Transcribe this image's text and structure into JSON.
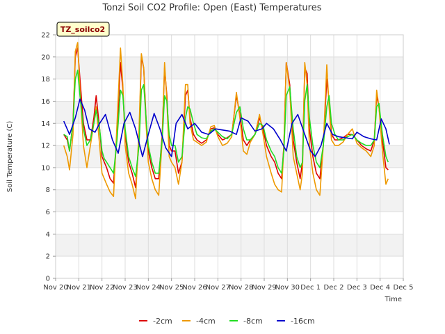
{
  "chart_data": {
    "type": "line",
    "title": "Tonzi Soil CO2 Profile: Open (East) Temperatures",
    "xlabel": "Time",
    "ylabel": "Soil Temperature (C)",
    "ylim": [
      0,
      22
    ],
    "xlim": [
      0,
      15
    ],
    "yticks": [
      0,
      2,
      4,
      6,
      8,
      10,
      12,
      14,
      16,
      18,
      20,
      22
    ],
    "xticks": [
      {
        "v": 0,
        "label": "Nov 20"
      },
      {
        "v": 1,
        "label": "Nov 21"
      },
      {
        "v": 2,
        "label": "Nov 22"
      },
      {
        "v": 3,
        "label": "Nov 23"
      },
      {
        "v": 4,
        "label": "Nov 24"
      },
      {
        "v": 5,
        "label": "Nov 25"
      },
      {
        "v": 6,
        "label": "Nov 26"
      },
      {
        "v": 7,
        "label": "Nov 27"
      },
      {
        "v": 8,
        "label": "Nov 28"
      },
      {
        "v": 9,
        "label": "Nov 29"
      },
      {
        "v": 10,
        "label": "Nov 30"
      },
      {
        "v": 11,
        "label": "Dec 1"
      },
      {
        "v": 12,
        "label": "Dec 2"
      },
      {
        "v": 13,
        "label": "Dec 3"
      },
      {
        "v": 14,
        "label": "Dec 4"
      },
      {
        "v": 15,
        "label": "Dec 5"
      }
    ],
    "grid": true,
    "legend_position": "bottom",
    "tag": "TZ_soilco2",
    "series": [
      {
        "name": "-2cm",
        "color": "#dd0000",
        "x": [
          0.35,
          0.5,
          0.6,
          0.75,
          0.85,
          0.95,
          1.05,
          1.2,
          1.35,
          1.5,
          1.65,
          1.75,
          1.9,
          2.0,
          2.1,
          2.2,
          2.35,
          2.5,
          2.65,
          2.8,
          2.9,
          3.0,
          3.15,
          3.3,
          3.45,
          3.6,
          3.7,
          3.8,
          3.9,
          4.0,
          4.15,
          4.3,
          4.45,
          4.6,
          4.7,
          4.8,
          4.9,
          5.0,
          5.15,
          5.3,
          5.45,
          5.6,
          5.7,
          5.8,
          5.95,
          6.1,
          6.3,
          6.5,
          6.7,
          6.85,
          7.0,
          7.2,
          7.4,
          7.6,
          7.8,
          7.95,
          8.1,
          8.25,
          8.4,
          8.6,
          8.8,
          8.95,
          9.1,
          9.3,
          9.45,
          9.6,
          9.75,
          9.85,
          9.95,
          10.1,
          10.25,
          10.4,
          10.55,
          10.65,
          10.75,
          10.85,
          10.95,
          11.1,
          11.25,
          11.4,
          11.55,
          11.7,
          11.8,
          11.9,
          12.05,
          12.2,
          12.4,
          12.6,
          12.8,
          13.0,
          13.2,
          13.4,
          13.6,
          13.75,
          13.85,
          13.95,
          14.1,
          14.25,
          14.35
        ],
        "y": [
          13.0,
          12.5,
          11.5,
          14.0,
          20.0,
          20.8,
          18.0,
          14.0,
          12.5,
          12.5,
          14.5,
          16.5,
          13.5,
          11.0,
          10.5,
          10.0,
          9.0,
          8.6,
          13.0,
          19.5,
          17.0,
          13.0,
          10.5,
          9.5,
          8.2,
          12.5,
          20.0,
          19.0,
          14.5,
          11.5,
          10.0,
          9.0,
          9.0,
          13.0,
          19.0,
          16.5,
          12.0,
          11.5,
          11.5,
          9.5,
          10.5,
          16.5,
          17.0,
          14.5,
          13.0,
          12.5,
          12.2,
          12.5,
          13.5,
          13.6,
          13.0,
          12.5,
          12.7,
          13.0,
          16.5,
          14.8,
          12.5,
          12.0,
          12.5,
          13.0,
          14.5,
          13.5,
          12.0,
          11.0,
          10.5,
          9.5,
          9.0,
          12.0,
          19.5,
          17.5,
          12.5,
          10.5,
          9.0,
          10.5,
          19.0,
          18.5,
          13.5,
          11.0,
          9.5,
          9.0,
          12.0,
          18.0,
          16.0,
          13.0,
          12.5,
          12.5,
          12.7,
          13.0,
          13.0,
          12.5,
          12.0,
          11.7,
          11.5,
          12.5,
          16.5,
          15.5,
          12.5,
          10.0,
          9.8
        ]
      },
      {
        "name": "-4cm",
        "color": "#ee9900",
        "x": [
          0.35,
          0.5,
          0.6,
          0.75,
          0.85,
          0.95,
          1.05,
          1.2,
          1.35,
          1.5,
          1.65,
          1.75,
          1.9,
          2.0,
          2.1,
          2.2,
          2.35,
          2.5,
          2.65,
          2.8,
          2.9,
          3.0,
          3.15,
          3.3,
          3.45,
          3.6,
          3.7,
          3.8,
          3.9,
          4.0,
          4.15,
          4.3,
          4.45,
          4.6,
          4.7,
          4.8,
          4.9,
          5.0,
          5.15,
          5.3,
          5.45,
          5.6,
          5.7,
          5.8,
          5.95,
          6.1,
          6.3,
          6.5,
          6.7,
          6.85,
          7.0,
          7.2,
          7.4,
          7.6,
          7.8,
          7.95,
          8.1,
          8.25,
          8.4,
          8.6,
          8.8,
          8.95,
          9.1,
          9.3,
          9.45,
          9.6,
          9.75,
          9.85,
          9.95,
          10.1,
          10.25,
          10.4,
          10.55,
          10.65,
          10.75,
          10.85,
          10.95,
          11.1,
          11.25,
          11.4,
          11.55,
          11.7,
          11.8,
          11.9,
          12.05,
          12.2,
          12.4,
          12.6,
          12.8,
          13.0,
          13.2,
          13.4,
          13.6,
          13.75,
          13.85,
          13.95,
          14.1,
          14.25,
          14.35
        ],
        "y": [
          12.0,
          11.0,
          9.8,
          13.0,
          20.5,
          21.3,
          17.0,
          12.0,
          10.0,
          12.0,
          14.0,
          15.5,
          12.0,
          9.5,
          9.0,
          8.5,
          7.8,
          7.4,
          14.0,
          20.8,
          17.5,
          12.0,
          9.5,
          8.5,
          7.2,
          13.5,
          20.3,
          19.0,
          14.0,
          10.5,
          9.0,
          8.0,
          7.5,
          12.5,
          19.5,
          16.0,
          11.0,
          10.5,
          10.0,
          8.5,
          10.5,
          17.5,
          17.5,
          14.0,
          12.5,
          12.3,
          12.0,
          12.3,
          13.7,
          13.8,
          12.8,
          12.0,
          12.2,
          12.8,
          16.8,
          14.5,
          11.5,
          11.2,
          12.3,
          13.0,
          14.8,
          13.0,
          11.0,
          9.5,
          8.5,
          8.0,
          7.8,
          12.0,
          19.5,
          17.0,
          11.0,
          9.5,
          8.0,
          9.5,
          19.5,
          17.5,
          12.0,
          9.5,
          8.0,
          7.5,
          12.0,
          19.3,
          15.5,
          12.5,
          12.0,
          12.0,
          12.3,
          13.0,
          13.5,
          12.2,
          11.8,
          11.5,
          11.0,
          12.0,
          17.0,
          15.5,
          11.5,
          8.5,
          9.0
        ]
      },
      {
        "name": "-8cm",
        "color": "#22dd22",
        "x": [
          0.35,
          0.5,
          0.6,
          0.75,
          0.85,
          0.95,
          1.05,
          1.2,
          1.35,
          1.5,
          1.65,
          1.75,
          1.9,
          2.0,
          2.1,
          2.2,
          2.35,
          2.5,
          2.65,
          2.8,
          2.9,
          3.0,
          3.15,
          3.3,
          3.45,
          3.6,
          3.7,
          3.8,
          3.9,
          4.0,
          4.15,
          4.3,
          4.45,
          4.6,
          4.7,
          4.8,
          4.9,
          5.0,
          5.15,
          5.3,
          5.45,
          5.6,
          5.7,
          5.8,
          5.95,
          6.1,
          6.3,
          6.5,
          6.7,
          6.85,
          7.0,
          7.2,
          7.4,
          7.6,
          7.8,
          7.95,
          8.1,
          8.25,
          8.4,
          8.6,
          8.8,
          8.95,
          9.1,
          9.3,
          9.45,
          9.6,
          9.75,
          9.85,
          9.95,
          10.1,
          10.25,
          10.4,
          10.55,
          10.65,
          10.75,
          10.85,
          10.95,
          11.1,
          11.25,
          11.4,
          11.55,
          11.7,
          11.8,
          11.9,
          12.05,
          12.2,
          12.4,
          12.6,
          12.8,
          13.0,
          13.2,
          13.4,
          13.6,
          13.75,
          13.85,
          13.95,
          14.1,
          14.25,
          14.35
        ],
        "y": [
          13.0,
          12.8,
          11.5,
          14.0,
          18.0,
          18.8,
          16.5,
          13.5,
          12.0,
          12.5,
          14.0,
          15.2,
          13.5,
          11.5,
          10.8,
          10.5,
          10.0,
          9.5,
          12.5,
          17.0,
          16.5,
          13.5,
          11.0,
          10.0,
          9.2,
          12.0,
          17.0,
          17.5,
          14.5,
          12.0,
          10.5,
          9.5,
          9.5,
          12.5,
          16.5,
          16.0,
          13.0,
          12.0,
          12.0,
          10.5,
          11.0,
          14.5,
          15.5,
          15.3,
          14.0,
          13.0,
          12.7,
          12.6,
          13.3,
          13.5,
          13.2,
          12.8,
          12.6,
          13.0,
          15.0,
          15.5,
          13.5,
          12.5,
          12.5,
          13.0,
          14.0,
          13.8,
          12.5,
          11.5,
          11.0,
          10.0,
          9.5,
          11.5,
          16.5,
          17.3,
          13.5,
          11.0,
          10.0,
          10.5,
          16.0,
          17.5,
          14.5,
          12.0,
          10.5,
          10.0,
          12.0,
          15.5,
          16.5,
          14.0,
          13.0,
          12.5,
          12.5,
          12.8,
          13.0,
          12.5,
          12.2,
          12.0,
          12.0,
          12.5,
          15.5,
          15.8,
          13.0,
          11.0,
          10.5
        ]
      },
      {
        "name": "-16cm",
        "color": "#0000cc",
        "x": [
          0.35,
          0.6,
          0.85,
          1.05,
          1.25,
          1.45,
          1.7,
          1.9,
          2.15,
          2.45,
          2.7,
          2.95,
          3.2,
          3.45,
          3.75,
          4.0,
          4.25,
          4.5,
          4.75,
          5.0,
          5.2,
          5.45,
          5.7,
          6.0,
          6.3,
          6.6,
          6.9,
          7.2,
          7.5,
          7.8,
          8.0,
          8.3,
          8.6,
          8.9,
          9.1,
          9.4,
          9.7,
          9.95,
          10.2,
          10.45,
          10.75,
          11.0,
          11.2,
          11.45,
          11.7,
          11.95,
          12.2,
          12.5,
          12.8,
          13.0,
          13.3,
          13.6,
          13.85,
          14.05,
          14.25,
          14.4
        ],
        "y": [
          14.2,
          13.0,
          14.5,
          16.2,
          15.2,
          13.5,
          13.2,
          14.0,
          14.8,
          12.5,
          11.3,
          14.0,
          15.0,
          13.5,
          11.0,
          13.0,
          14.9,
          13.5,
          11.8,
          11.0,
          14.0,
          14.8,
          13.5,
          14.0,
          13.2,
          13.0,
          13.5,
          13.4,
          13.3,
          13.0,
          14.5,
          14.2,
          13.3,
          13.5,
          14.0,
          13.5,
          12.5,
          11.5,
          14.0,
          14.8,
          13.0,
          11.5,
          11.0,
          12.0,
          14.0,
          13.0,
          12.8,
          12.7,
          12.6,
          13.2,
          12.8,
          12.6,
          12.5,
          14.4,
          13.5,
          12.1
        ]
      }
    ]
  }
}
